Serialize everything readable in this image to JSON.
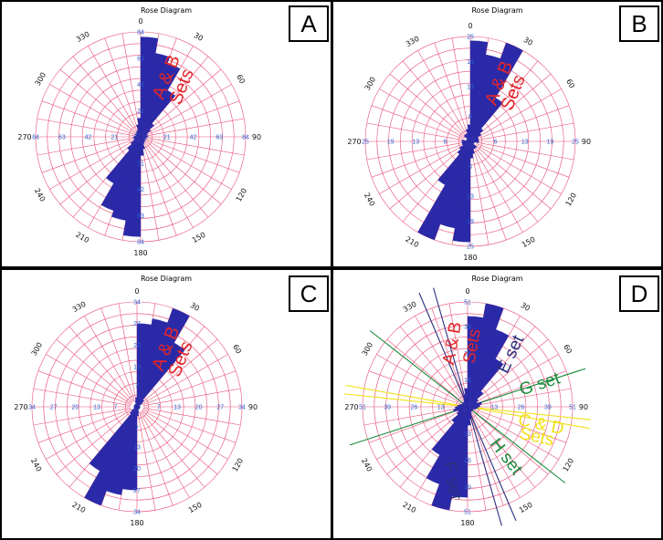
{
  "colors": {
    "petal": "#2a2aa8",
    "grid": "#e8507a",
    "tick_label": "#2f5fd0",
    "annot_red": "#e2262a",
    "annot_navy": "#2b2e7c",
    "annot_green": "#1a8a3a",
    "annot_yellow": "#f0e21a"
  },
  "chart_data": [
    {
      "type": "rose",
      "panel_label": "A",
      "title": "Rose Diagram",
      "angle_labels": [
        "0",
        "30",
        "60",
        "90",
        "120",
        "150",
        "180",
        "210",
        "240",
        "270",
        "300",
        "330"
      ],
      "radial_ticks": [
        21,
        42,
        63,
        84
      ],
      "rmax": 84,
      "bin_width_deg": 10,
      "bins": [
        {
          "dir": 5,
          "value": 80
        },
        {
          "dir": 15,
          "value": 68
        },
        {
          "dir": 25,
          "value": 63
        },
        {
          "dir": 35,
          "value": 43
        },
        {
          "dir": 45,
          "value": 14
        },
        {
          "dir": 55,
          "value": 9
        },
        {
          "dir": 65,
          "value": 6
        },
        {
          "dir": 75,
          "value": 5
        },
        {
          "dir": 85,
          "value": 6
        },
        {
          "dir": 95,
          "value": 5
        },
        {
          "dir": 105,
          "value": 4
        },
        {
          "dir": 115,
          "value": 5
        },
        {
          "dir": 125,
          "value": 4
        },
        {
          "dir": 135,
          "value": 5
        },
        {
          "dir": 145,
          "value": 5
        },
        {
          "dir": 155,
          "value": 6
        },
        {
          "dir": 165,
          "value": 10
        },
        {
          "dir": 175,
          "value": 15
        },
        {
          "dir": 185,
          "value": 80
        },
        {
          "dir": 195,
          "value": 68
        },
        {
          "dir": 205,
          "value": 63
        },
        {
          "dir": 215,
          "value": 43
        },
        {
          "dir": 225,
          "value": 14
        },
        {
          "dir": 235,
          "value": 9
        },
        {
          "dir": 245,
          "value": 6
        },
        {
          "dir": 255,
          "value": 5
        },
        {
          "dir": 265,
          "value": 6
        },
        {
          "dir": 275,
          "value": 5
        },
        {
          "dir": 285,
          "value": 4
        },
        {
          "dir": 295,
          "value": 5
        },
        {
          "dir": 305,
          "value": 4
        },
        {
          "dir": 315,
          "value": 5
        },
        {
          "dir": 325,
          "value": 5
        },
        {
          "dir": 335,
          "value": 6
        },
        {
          "dir": 345,
          "value": 10
        },
        {
          "dir": 355,
          "value": 15
        }
      ],
      "annotations": [
        {
          "text": "A & B",
          "color": "annot_red",
          "dir": 24,
          "r": 0.62,
          "rotate": -68,
          "size": 20
        },
        {
          "text": "Sets",
          "color": "annot_red",
          "dir": 40,
          "r": 0.62,
          "rotate": -68,
          "size": 20
        }
      ],
      "set_lines": []
    },
    {
      "type": "rose",
      "panel_label": "B",
      "title": "Rose Diagram",
      "angle_labels": [
        "0",
        "30",
        "60",
        "90",
        "120",
        "150",
        "180",
        "210",
        "240",
        "270",
        "300",
        "330"
      ],
      "radial_ticks": [
        6,
        13,
        19,
        25
      ],
      "rmax": 25,
      "bin_width_deg": 10,
      "bins": [
        {
          "dir": 5,
          "value": 24
        },
        {
          "dir": 15,
          "value": 21
        },
        {
          "dir": 25,
          "value": 25
        },
        {
          "dir": 35,
          "value": 12
        },
        {
          "dir": 45,
          "value": 4
        },
        {
          "dir": 55,
          "value": 3
        },
        {
          "dir": 65,
          "value": 2
        },
        {
          "dir": 75,
          "value": 2
        },
        {
          "dir": 85,
          "value": 2
        },
        {
          "dir": 95,
          "value": 2
        },
        {
          "dir": 105,
          "value": 1
        },
        {
          "dir": 115,
          "value": 1
        },
        {
          "dir": 125,
          "value": 1
        },
        {
          "dir": 135,
          "value": 2
        },
        {
          "dir": 145,
          "value": 2
        },
        {
          "dir": 155,
          "value": 2
        },
        {
          "dir": 165,
          "value": 3
        },
        {
          "dir": 175,
          "value": 4
        },
        {
          "dir": 185,
          "value": 24
        },
        {
          "dir": 195,
          "value": 21
        },
        {
          "dir": 205,
          "value": 25
        },
        {
          "dir": 215,
          "value": 12
        },
        {
          "dir": 225,
          "value": 4
        },
        {
          "dir": 235,
          "value": 3
        },
        {
          "dir": 245,
          "value": 2
        },
        {
          "dir": 255,
          "value": 2
        },
        {
          "dir": 265,
          "value": 2
        },
        {
          "dir": 275,
          "value": 2
        },
        {
          "dir": 285,
          "value": 1
        },
        {
          "dir": 295,
          "value": 1
        },
        {
          "dir": 305,
          "value": 1
        },
        {
          "dir": 315,
          "value": 2
        },
        {
          "dir": 325,
          "value": 2
        },
        {
          "dir": 335,
          "value": 2
        },
        {
          "dir": 345,
          "value": 3
        },
        {
          "dir": 355,
          "value": 4
        }
      ],
      "annotations": [
        {
          "text": "A & B",
          "color": "annot_red",
          "dir": 27,
          "r": 0.62,
          "rotate": -68,
          "size": 20
        },
        {
          "text": "Sets",
          "color": "annot_red",
          "dir": 42,
          "r": 0.62,
          "rotate": -68,
          "size": 20
        }
      ],
      "set_lines": []
    },
    {
      "type": "rose",
      "panel_label": "C",
      "title": "Rose Diagram",
      "angle_labels": [
        "0",
        "30",
        "60",
        "90",
        "120",
        "150",
        "180",
        "210",
        "240",
        "270",
        "300",
        "330"
      ],
      "radial_ticks": [
        7,
        13,
        20,
        27,
        34
      ],
      "rmax": 34,
      "bin_width_deg": 10,
      "bins": [
        {
          "dir": 5,
          "value": 27
        },
        {
          "dir": 15,
          "value": 29
        },
        {
          "dir": 25,
          "value": 34
        },
        {
          "dir": 35,
          "value": 24
        },
        {
          "dir": 45,
          "value": 3
        },
        {
          "dir": 55,
          "value": 2
        },
        {
          "dir": 65,
          "value": 1
        },
        {
          "dir": 75,
          "value": 1
        },
        {
          "dir": 85,
          "value": 1
        },
        {
          "dir": 95,
          "value": 1
        },
        {
          "dir": 105,
          "value": 1
        },
        {
          "dir": 115,
          "value": 1
        },
        {
          "dir": 125,
          "value": 1
        },
        {
          "dir": 135,
          "value": 1
        },
        {
          "dir": 145,
          "value": 1
        },
        {
          "dir": 155,
          "value": 1
        },
        {
          "dir": 165,
          "value": 2
        },
        {
          "dir": 175,
          "value": 3
        },
        {
          "dir": 185,
          "value": 27
        },
        {
          "dir": 195,
          "value": 29
        },
        {
          "dir": 205,
          "value": 34
        },
        {
          "dir": 215,
          "value": 24
        },
        {
          "dir": 225,
          "value": 3
        },
        {
          "dir": 235,
          "value": 2
        },
        {
          "dir": 245,
          "value": 1
        },
        {
          "dir": 255,
          "value": 1
        },
        {
          "dir": 265,
          "value": 1
        },
        {
          "dir": 275,
          "value": 1
        },
        {
          "dir": 285,
          "value": 1
        },
        {
          "dir": 295,
          "value": 1
        },
        {
          "dir": 305,
          "value": 1
        },
        {
          "dir": 315,
          "value": 1
        },
        {
          "dir": 325,
          "value": 1
        },
        {
          "dir": 335,
          "value": 1
        },
        {
          "dir": 345,
          "value": 2
        },
        {
          "dir": 355,
          "value": 3
        }
      ],
      "annotations": [
        {
          "text": "A & B",
          "color": "annot_red",
          "dir": 27,
          "r": 0.62,
          "rotate": -68,
          "size": 20
        },
        {
          "text": "Sets",
          "color": "annot_red",
          "dir": 43,
          "r": 0.62,
          "rotate": -68,
          "size": 20
        }
      ],
      "set_lines": []
    },
    {
      "type": "rose",
      "panel_label": "D",
      "title": "Rose Diagram",
      "angle_labels": [
        "0",
        "30",
        "60",
        "90",
        "120",
        "150",
        "180",
        "210",
        "240",
        "270",
        "300",
        "330"
      ],
      "radial_ticks": [
        13,
        26,
        39,
        51
      ],
      "rmax": 51,
      "bin_width_deg": 10,
      "bins": [
        {
          "dir": 5,
          "value": 44
        },
        {
          "dir": 15,
          "value": 51
        },
        {
          "dir": 25,
          "value": 40
        },
        {
          "dir": 35,
          "value": 27
        },
        {
          "dir": 45,
          "value": 10
        },
        {
          "dir": 55,
          "value": 6
        },
        {
          "dir": 65,
          "value": 5
        },
        {
          "dir": 75,
          "value": 7
        },
        {
          "dir": 85,
          "value": 6
        },
        {
          "dir": 95,
          "value": 5
        },
        {
          "dir": 105,
          "value": 4
        },
        {
          "dir": 115,
          "value": 3
        },
        {
          "dir": 125,
          "value": 3
        },
        {
          "dir": 135,
          "value": 3
        },
        {
          "dir": 145,
          "value": 3
        },
        {
          "dir": 155,
          "value": 4
        },
        {
          "dir": 165,
          "value": 6
        },
        {
          "dir": 175,
          "value": 9
        },
        {
          "dir": 185,
          "value": 44
        },
        {
          "dir": 195,
          "value": 51
        },
        {
          "dir": 205,
          "value": 40
        },
        {
          "dir": 215,
          "value": 27
        },
        {
          "dir": 225,
          "value": 10
        },
        {
          "dir": 235,
          "value": 6
        },
        {
          "dir": 245,
          "value": 5
        },
        {
          "dir": 255,
          "value": 7
        },
        {
          "dir": 265,
          "value": 6
        },
        {
          "dir": 275,
          "value": 5
        },
        {
          "dir": 285,
          "value": 4
        },
        {
          "dir": 295,
          "value": 3
        },
        {
          "dir": 305,
          "value": 3
        },
        {
          "dir": 315,
          "value": 3
        },
        {
          "dir": 325,
          "value": 3
        },
        {
          "dir": 335,
          "value": 4
        },
        {
          "dir": 345,
          "value": 6
        },
        {
          "dir": 355,
          "value": 9
        }
      ],
      "annotations": [
        {
          "text": "A & B",
          "color": "annot_red",
          "dir": 347,
          "r": 0.62,
          "rotate": -80,
          "size": 19
        },
        {
          "text": "Sets",
          "color": "annot_red",
          "dir": 5,
          "r": 0.58,
          "rotate": -80,
          "size": 19
        },
        {
          "text": "E set",
          "color": "annot_navy",
          "dir": 40,
          "r": 0.65,
          "rotate": -65,
          "size": 19
        },
        {
          "text": "G set",
          "color": "annot_green",
          "dir": 73,
          "r": 0.72,
          "rotate": -18,
          "size": 19
        },
        {
          "text": "C & D",
          "color": "annot_yellow",
          "dir": 104,
          "r": 0.72,
          "rotate": 12,
          "size": 19
        },
        {
          "text": "Sets",
          "color": "annot_yellow",
          "dir": 114,
          "r": 0.72,
          "rotate": 12,
          "size": 19
        },
        {
          "text": "H set",
          "color": "annot_green",
          "dir": 143,
          "r": 0.6,
          "rotate": 52,
          "size": 19
        },
        {
          "text": "F set",
          "color": "annot_navy",
          "dir": 192,
          "r": 0.72,
          "rotate": 80,
          "size": 19
        }
      ],
      "set_lines": [
        {
          "strike": 157,
          "color": "annot_navy"
        },
        {
          "strike": 164,
          "color": "annot_navy"
        },
        {
          "strike": 128,
          "color": "annot_green"
        },
        {
          "strike": 72,
          "color": "annot_green"
        },
        {
          "strike": 96,
          "color": "annot_yellow"
        },
        {
          "strike": 100,
          "color": "annot_yellow"
        }
      ]
    }
  ]
}
